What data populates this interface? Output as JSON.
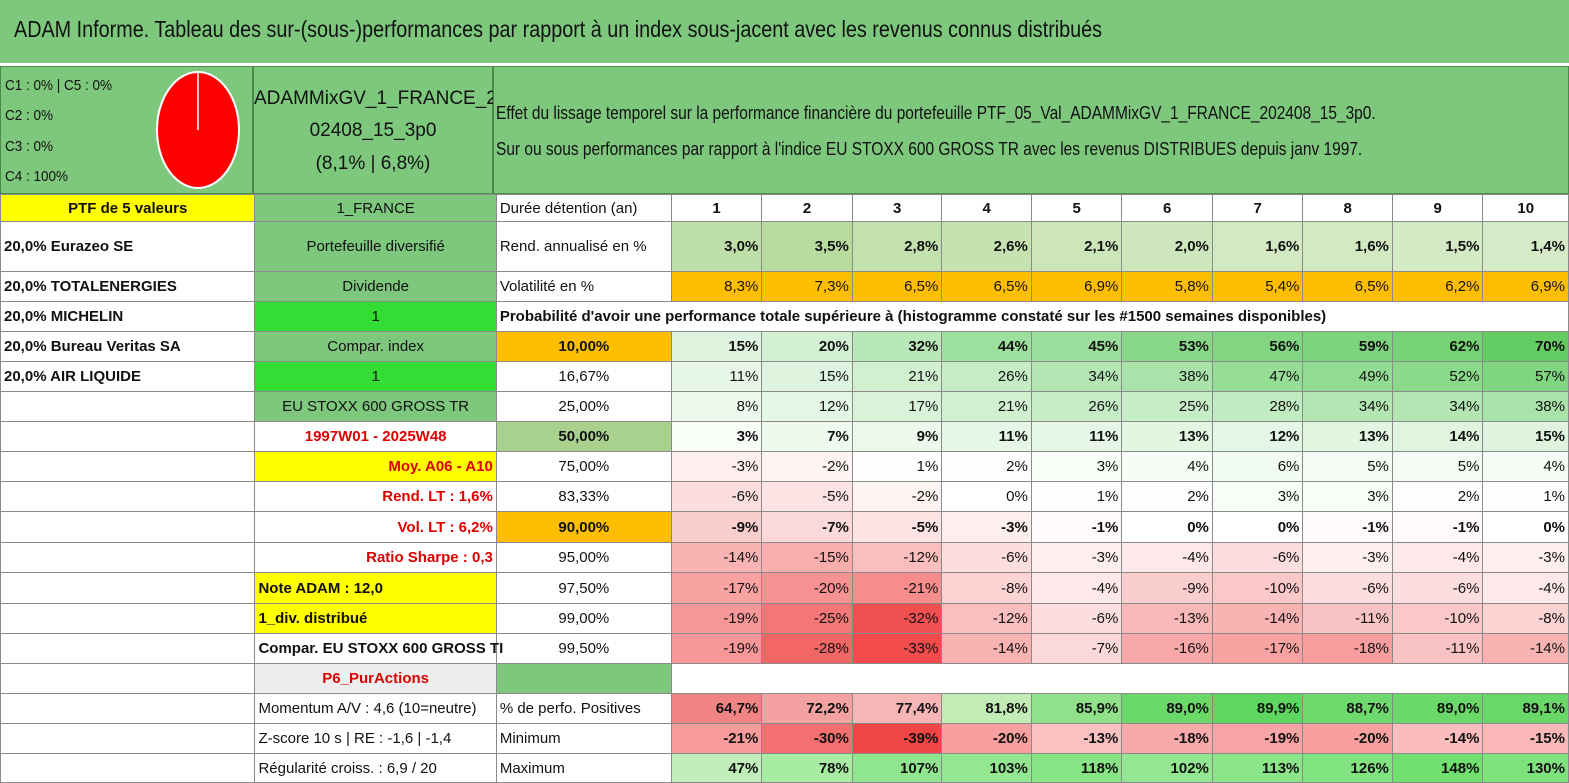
{
  "title": "ADAM Informe. Tableau des sur-(sous-)performances par rapport à un index sous-jacent avec les revenus connus distribués",
  "legend": [
    "C1 : 0% | C5 : 0%",
    "C2 : 0%",
    "C3 : 0%",
    "C4 : 100%"
  ],
  "pie": {
    "C4_fraction": 1.0,
    "color": "#ff0000"
  },
  "portfolio_code": [
    "ADAMMixGV_1_FRANCE_2",
    "02408_15_3p0",
    "(8,1% | 6,8%)"
  ],
  "description": [
    "Effet du lissage temporel sur la performance financière du portefeuille PTF_05_Val_ADAMMixGV_1_FRANCE_202408_15_3p0.",
    "Sur ou sous performances par rapport à l'indice EU STOXX 600 GROSS TR avec les revenus DISTRIBUES depuis janv 1997."
  ],
  "ptf_label": "PTF de 5 valeurs",
  "stocks": [
    "20,0% Eurazeo SE",
    "20,0% TOTALENERGIES",
    "20,0% MICHELIN",
    "20,0% Bureau Veritas SA",
    "20,0% AIR LIQUIDE"
  ],
  "tags": {
    "region": "1_FRANCE",
    "type": "Portefeuille diversifié",
    "dividend_label": "Dividende",
    "dividend_value": "1",
    "compar_label": "Compar. index",
    "compar_value": "1",
    "index_name": "EU STOXX 600 GROSS TR",
    "period": "1997W01 - 2025W48"
  },
  "side": {
    "moy": "Moy. A06 - A10",
    "rend_lt": "Rend. LT : 1,6%",
    "vol_lt": "Vol. LT : 6,2%",
    "sharpe": "Ratio Sharpe : 0,3",
    "note": "Note ADAM : 12,0",
    "div": "1_div. distribué",
    "compar": "Compar. EU STOXX 600 GROSS TI",
    "p6": "P6_PurActions",
    "momentum": "Momentum A/V : 4,6 (10=neutre)",
    "zscore": "Z-score 10 s | RE : -1,6 | -1,4",
    "regularite": "Régularité croiss. : 6,9 / 20"
  },
  "duree_label": "Durée détention (an)",
  "years": [
    "1",
    "2",
    "3",
    "4",
    "5",
    "6",
    "7",
    "8",
    "9",
    "10"
  ],
  "rend_label": "Rend. annualisé en %",
  "rend": [
    "3,0%",
    "3,5%",
    "2,8%",
    "2,6%",
    "2,1%",
    "2,0%",
    "1,6%",
    "1,6%",
    "1,5%",
    "1,4%"
  ],
  "vol_label": "Volatilité en %",
  "vol": [
    "8,3%",
    "7,3%",
    "6,5%",
    "6,5%",
    "6,9%",
    "5,8%",
    "5,4%",
    "6,5%",
    "6,2%",
    "6,9%"
  ],
  "prob_title": "Probabilité d'avoir une performance totale supérieure à (histogramme constaté sur les #1500 semaines disponibles)",
  "quantiles": [
    {
      "p": "10,00%",
      "v": [
        "15%",
        "20%",
        "32%",
        "44%",
        "45%",
        "53%",
        "56%",
        "59%",
        "62%",
        "70%"
      ]
    },
    {
      "p": "16,67%",
      "v": [
        "11%",
        "15%",
        "21%",
        "26%",
        "34%",
        "38%",
        "47%",
        "49%",
        "52%",
        "57%"
      ]
    },
    {
      "p": "25,00%",
      "v": [
        "8%",
        "12%",
        "17%",
        "21%",
        "26%",
        "25%",
        "28%",
        "34%",
        "34%",
        "38%"
      ]
    },
    {
      "p": "50,00%",
      "v": [
        "3%",
        "7%",
        "9%",
        "11%",
        "11%",
        "13%",
        "12%",
        "13%",
        "14%",
        "15%"
      ]
    },
    {
      "p": "75,00%",
      "v": [
        "-3%",
        "-2%",
        "1%",
        "2%",
        "3%",
        "4%",
        "6%",
        "5%",
        "5%",
        "4%"
      ]
    },
    {
      "p": "83,33%",
      "v": [
        "-6%",
        "-5%",
        "-2%",
        "0%",
        "1%",
        "2%",
        "3%",
        "3%",
        "2%",
        "1%"
      ]
    },
    {
      "p": "90,00%",
      "v": [
        "-9%",
        "-7%",
        "-5%",
        "-3%",
        "-1%",
        "0%",
        "0%",
        "-1%",
        "-1%",
        "0%"
      ]
    },
    {
      "p": "95,00%",
      "v": [
        "-14%",
        "-15%",
        "-12%",
        "-6%",
        "-3%",
        "-4%",
        "-6%",
        "-3%",
        "-4%",
        "-3%"
      ]
    },
    {
      "p": "97,50%",
      "v": [
        "-17%",
        "-20%",
        "-21%",
        "-8%",
        "-4%",
        "-9%",
        "-10%",
        "-6%",
        "-6%",
        "-4%"
      ]
    },
    {
      "p": "99,00%",
      "v": [
        "-19%",
        "-25%",
        "-32%",
        "-12%",
        "-6%",
        "-13%",
        "-14%",
        "-11%",
        "-10%",
        "-8%"
      ]
    },
    {
      "p": "99,50%",
      "v": [
        "-19%",
        "-28%",
        "-33%",
        "-14%",
        "-7%",
        "-16%",
        "-17%",
        "-18%",
        "-11%",
        "-14%"
      ]
    }
  ],
  "pos_label": "% de perfo. Positives",
  "pos": [
    "64,7%",
    "72,2%",
    "77,4%",
    "81,8%",
    "85,9%",
    "89,0%",
    "89,9%",
    "88,7%",
    "89,0%",
    "89,1%"
  ],
  "min_label": "Minimum",
  "min": [
    "-21%",
    "-30%",
    "-39%",
    "-20%",
    "-13%",
    "-18%",
    "-19%",
    "-20%",
    "-14%",
    "-15%"
  ],
  "max_label": "Maximum",
  "max": [
    "47%",
    "78%",
    "107%",
    "103%",
    "118%",
    "102%",
    "113%",
    "126%",
    "148%",
    "130%"
  ]
}
